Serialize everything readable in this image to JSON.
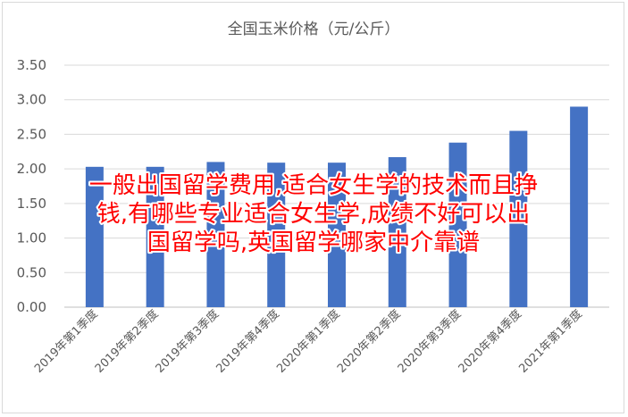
{
  "chart_data": {
    "type": "bar",
    "title": "全国玉米价格（元/公斤）",
    "categories": [
      "2019年第1季度",
      "2019年第2季度",
      "2019年第3季度",
      "2019年第4季度",
      "2020年第1季度",
      "2020年第2季度",
      "2020年第3季度",
      "2020年第4季度",
      "2021年第1季度"
    ],
    "values": [
      2.03,
      2.03,
      2.1,
      2.09,
      2.09,
      2.17,
      2.38,
      2.55,
      2.9
    ],
    "ylim": [
      0,
      3.5
    ],
    "yticks": [
      "0.00",
      "0.50",
      "1.00",
      "1.50",
      "2.00",
      "2.50",
      "3.00",
      "3.50"
    ],
    "bar_color": "#4472c4",
    "grid": true,
    "legend": "none"
  },
  "overlay": {
    "lines": [
      "一般出国留学费用,适合女生学的技术而且挣",
      "钱,有哪些专业适合女生学,成绩不好可以出",
      "国留学吗,英国留学哪家中介靠谱"
    ],
    "color": "#ff0000"
  }
}
